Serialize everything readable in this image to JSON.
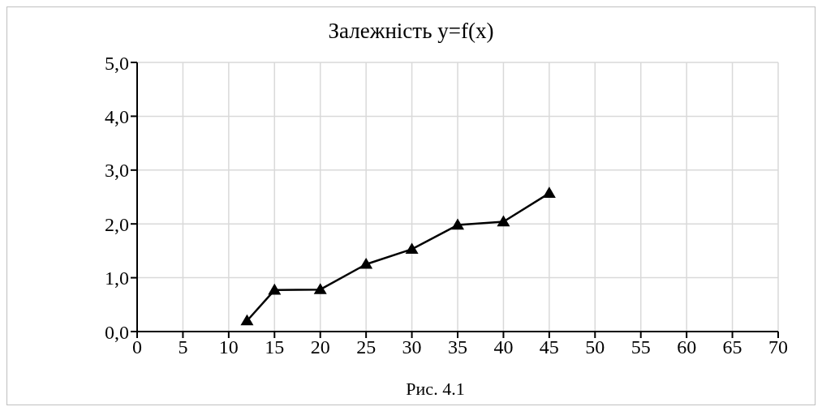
{
  "chart_data": {
    "type": "line",
    "title": "Залежність y=f(x)",
    "annotations": [
      "Рис. 4.1"
    ],
    "x": [
      12,
      15,
      20,
      25,
      30,
      35,
      40,
      45
    ],
    "series": [
      {
        "color": "#000000",
        "values": [
          0.2,
          0.77,
          0.78,
          1.25,
          1.53,
          1.98,
          2.04,
          2.57
        ]
      }
    ],
    "xlim": [
      0,
      70
    ],
    "xticks": [
      0,
      5,
      10,
      15,
      20,
      25,
      30,
      35,
      40,
      45,
      50,
      55,
      60,
      65,
      70
    ],
    "ylim": [
      0,
      5
    ],
    "yticks": [
      {
        "value": 0,
        "label": "0,0"
      },
      {
        "value": 1,
        "label": "1,0"
      },
      {
        "value": 2,
        "label": "2,0"
      },
      {
        "value": 3,
        "label": "3,0"
      },
      {
        "value": 4,
        "label": "4,0"
      },
      {
        "value": 5,
        "label": "5,0"
      }
    ],
    "grid": true,
    "marker": "triangle",
    "line_style": "solid",
    "legend": false
  }
}
